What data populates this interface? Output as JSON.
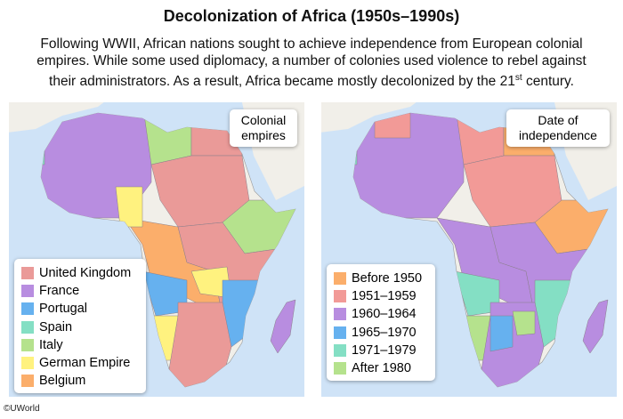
{
  "title": "Decolonization of Africa (1950s–1990s)",
  "description_lines": [
    "Following WWII, African nations sought to achieve independence from European colonial",
    "empires. While some used diplomacy, a number of colonies used violence to rebel against",
    "their administrators. As a result, Africa became mostly decolonized by the 21"
  ],
  "description_sup": "st",
  "description_end": " century.",
  "left_map": {
    "label": "Colonial empires",
    "legend": [
      {
        "label": "United Kingdom",
        "color": "#ea9a98"
      },
      {
        "label": "France",
        "color": "#b88de0"
      },
      {
        "label": "Portugal",
        "color": "#66b1ef"
      },
      {
        "label": "Spain",
        "color": "#84dfc4"
      },
      {
        "label": "Italy",
        "color": "#b5e28d"
      },
      {
        "label": "German Empire",
        "color": "#fff27f"
      },
      {
        "label": "Belgium",
        "color": "#fbae6b"
      }
    ]
  },
  "right_map": {
    "label": "Date of independence",
    "legend": [
      {
        "label": "Before 1950",
        "color": "#fbae6b"
      },
      {
        "label": "1951–1959",
        "color": "#f29a97"
      },
      {
        "label": "1960–1964",
        "color": "#b88de0"
      },
      {
        "label": "1965–1970",
        "color": "#66b1ef"
      },
      {
        "label": "1971–1979",
        "color": "#84dfc4"
      },
      {
        "label": "After 1980",
        "color": "#b5e28d"
      }
    ]
  },
  "copyright": "©UWorld"
}
